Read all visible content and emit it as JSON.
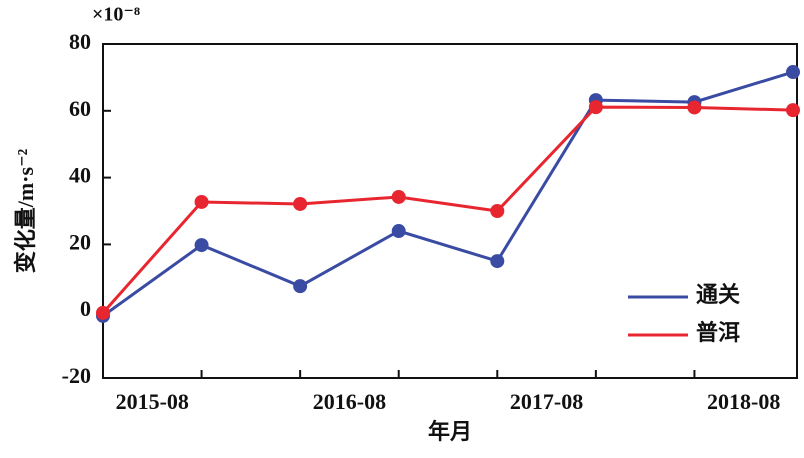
{
  "chart_data": {
    "type": "line",
    "y_label": "变化量/m·s⁻²",
    "x_label": "年月",
    "y_multiplier": "×10⁻⁸",
    "categories": [
      "2015-08",
      null,
      "2016-08",
      null,
      "2017-08",
      null,
      "2018-08",
      null
    ],
    "series": [
      {
        "name": "通关",
        "color": "#3a4ba3",
        "values": [
          -1.4,
          19.8,
          7.5,
          24,
          15,
          63.2,
          62.6,
          71.6
        ]
      },
      {
        "name": "普洱",
        "color": "#e8262f",
        "values": [
          -0.5,
          32.7,
          32.1,
          34.2,
          30,
          61.1,
          61,
          60.2
        ]
      }
    ],
    "ylim": [
      -20,
      80
    ],
    "yticks": [
      -20,
      0,
      20,
      40,
      60,
      80
    ],
    "grid": false,
    "legend": "lower-right"
  }
}
